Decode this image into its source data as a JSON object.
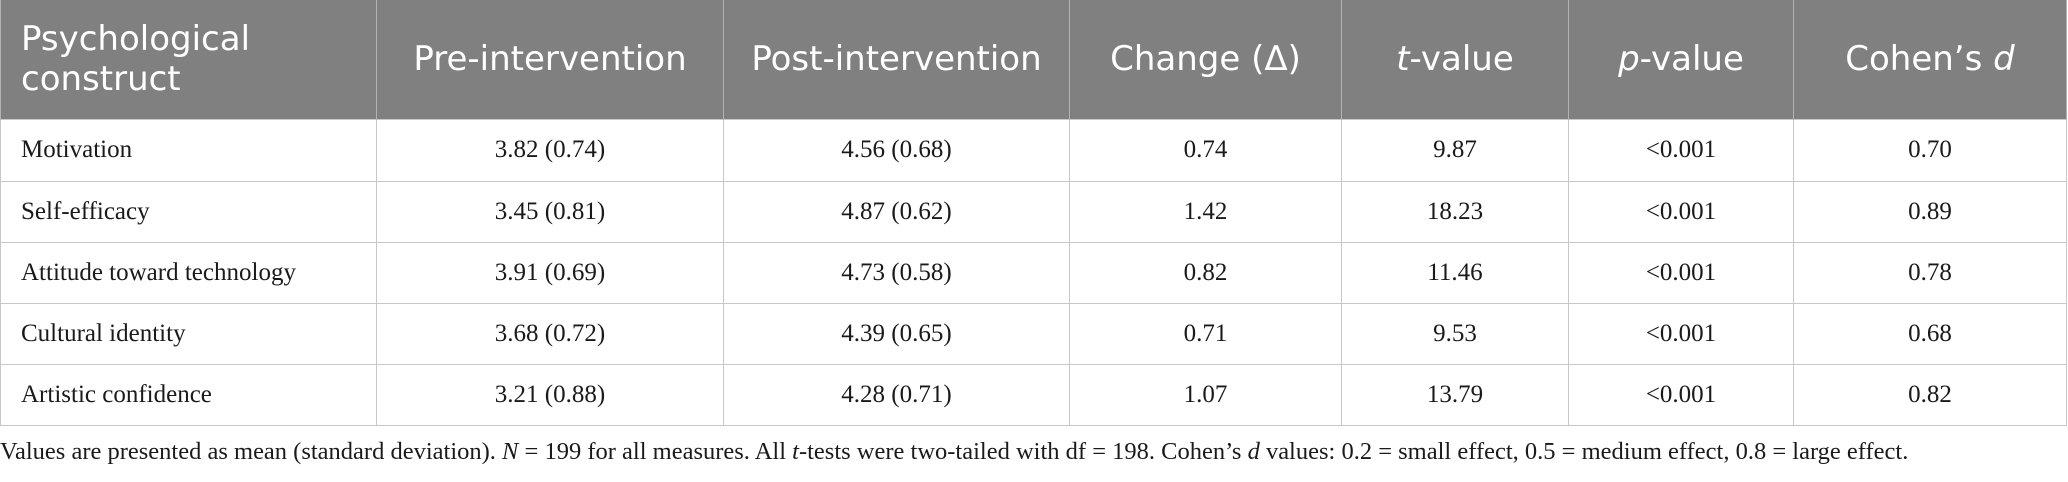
{
  "table": {
    "headers": {
      "construct": "Psychological construct",
      "pre": "Pre-intervention",
      "post": "Post-intervention",
      "change": "Change (Δ)",
      "t_italic": "t",
      "t_rest": "-value",
      "p_italic": "p",
      "p_rest": "-value",
      "d_text": "Cohen’s ",
      "d_italic": "d"
    },
    "rows": [
      {
        "construct": "Motivation",
        "pre": "3.82 (0.74)",
        "post": "4.56 (0.68)",
        "change": "0.74",
        "t": "9.87",
        "p": "<0.001",
        "d": "0.70"
      },
      {
        "construct": "Self-efficacy",
        "pre": "3.45 (0.81)",
        "post": "4.87 (0.62)",
        "change": "1.42",
        "t": "18.23",
        "p": "<0.001",
        "d": "0.89"
      },
      {
        "construct": "Attitude toward technology",
        "pre": "3.91 (0.69)",
        "post": "4.73 (0.58)",
        "change": "0.82",
        "t": "11.46",
        "p": "<0.001",
        "d": "0.78"
      },
      {
        "construct": "Cultural identity",
        "pre": "3.68 (0.72)",
        "post": "4.39 (0.65)",
        "change": "0.71",
        "t": "9.53",
        "p": "<0.001",
        "d": "0.68"
      },
      {
        "construct": "Artistic confidence",
        "pre": "3.21 (0.88)",
        "post": "4.28 (0.71)",
        "change": "1.07",
        "t": "13.79",
        "p": "<0.001",
        "d": "0.82"
      }
    ]
  },
  "footnote": {
    "part1": "Values are presented as mean (standard deviation). ",
    "n_italic": "N",
    "part2": " = 199 for all measures. All ",
    "t_italic": "t",
    "part3": "-tests were two-tailed with df = 198. Cohen’s ",
    "d_italic": "d",
    "part4": " values: 0.2 = small effect, 0.5 = medium effect, 0.8 = large effect."
  }
}
